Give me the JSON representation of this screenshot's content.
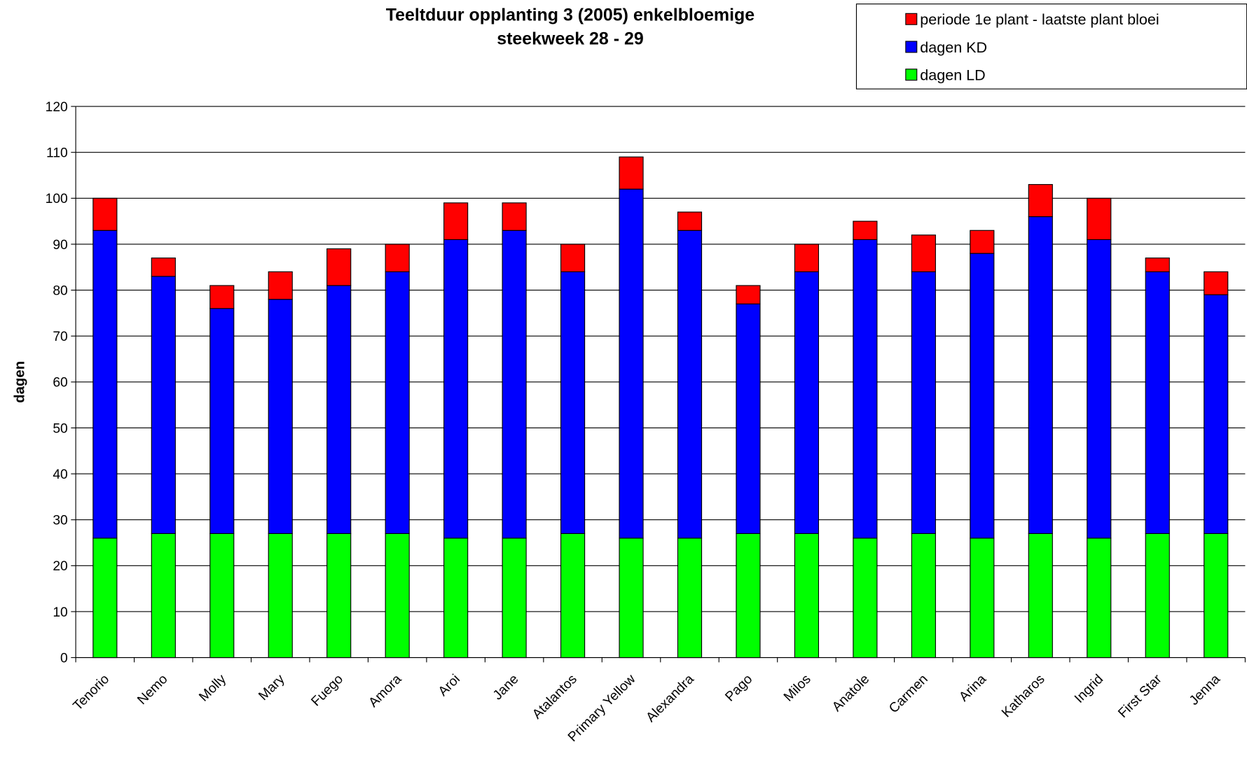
{
  "chart_data": {
    "type": "stacked_bar",
    "title": [
      "Teeltduur opplanting 3 (2005) enkelbloemige",
      "steekweek 28 - 29"
    ],
    "y_label": "dagen",
    "categories": [
      "Tenorio",
      "Nemo",
      "Molly",
      "Mary",
      "Fuego",
      "Amora",
      "Aroi",
      "Jane",
      "Atalantos",
      "Primary Yellow",
      "Alexandra",
      "Pago",
      "Milos",
      "Anatole",
      "Carmen",
      "Arina",
      "Katharos",
      "Ingrid",
      "First Star",
      "Jenna"
    ],
    "series": [
      {
        "name": "dagen LD",
        "color": "#00ff00",
        "values": [
          26,
          27,
          27,
          27,
          27,
          27,
          26,
          26,
          27,
          26,
          26,
          27,
          27,
          26,
          27,
          26,
          27,
          26,
          27,
          27
        ]
      },
      {
        "name": "dagen KD",
        "color": "#0000ff",
        "values": [
          67,
          56,
          49,
          51,
          54,
          57,
          65,
          67,
          57,
          76,
          67,
          50,
          57,
          65,
          57,
          62,
          69,
          65,
          57,
          52
        ]
      },
      {
        "name": "periode 1e plant - laatste plant bloei",
        "color": "#ff0000",
        "values": [
          7,
          4,
          5,
          6,
          8,
          6,
          8,
          6,
          6,
          7,
          4,
          4,
          6,
          4,
          8,
          5,
          7,
          9,
          3,
          5
        ]
      }
    ],
    "ylim": [
      0,
      120
    ],
    "yticks": [
      0,
      10,
      20,
      30,
      40,
      50,
      60,
      70,
      80,
      90,
      100,
      110,
      120
    ],
    "grid": true,
    "legend": "top-right"
  }
}
